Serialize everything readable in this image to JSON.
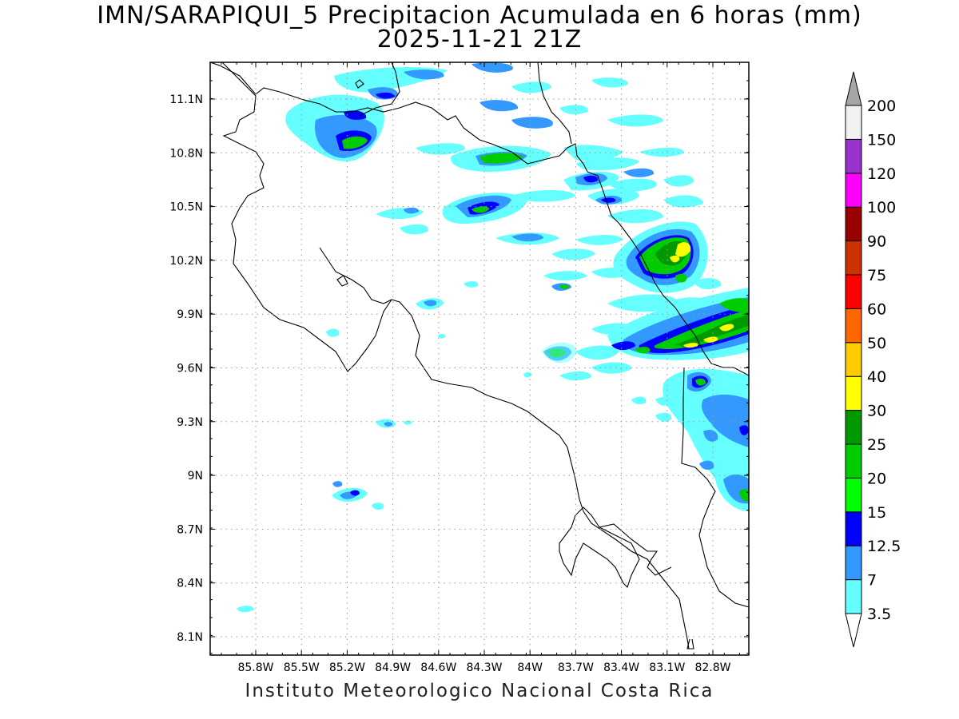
{
  "title": {
    "line1": "IMN/SARAPIQUI_5 Precipitacion Acumulada en 6 horas (mm)",
    "line2": "2025-11-21 21Z"
  },
  "footer": "Instituto Meteorologico Nacional Costa Rica",
  "map": {
    "lon_range": [
      -86.0,
      -83.0
    ],
    "lat_range": [
      8.0,
      11.2
    ],
    "lon_ticks": [
      "85.8W",
      "85.5W",
      "85.2W",
      "84.9W",
      "84.6W",
      "84.3W",
      "84W",
      "83.7W",
      "83.4W",
      "83.1W",
      "82.8W"
    ],
    "lat_ticks": [
      "11.1N",
      "10.8N",
      "10.5N",
      "10.2N",
      "9.9N",
      "9.6N",
      "9.3N",
      "9N",
      "8.7N",
      "8.4N",
      "8.1N"
    ],
    "grid": "dotted"
  },
  "colorbar": {
    "levels": [
      "3.5",
      "7",
      "12.5",
      "15",
      "20",
      "25",
      "30",
      "40",
      "50",
      "60",
      "75",
      "90",
      "100",
      "120",
      "150",
      "200"
    ],
    "colors": [
      "#66ffff",
      "#3399ff",
      "#0000ff",
      "#00ff00",
      "#00cc00",
      "#009900",
      "#ffff00",
      "#ffcc00",
      "#ff6600",
      "#ff0000",
      "#cc3300",
      "#990000",
      "#ff00ff",
      "#9933cc",
      "#f2f2f2",
      "#a6a6a6"
    ],
    "unit": "mm"
  }
}
